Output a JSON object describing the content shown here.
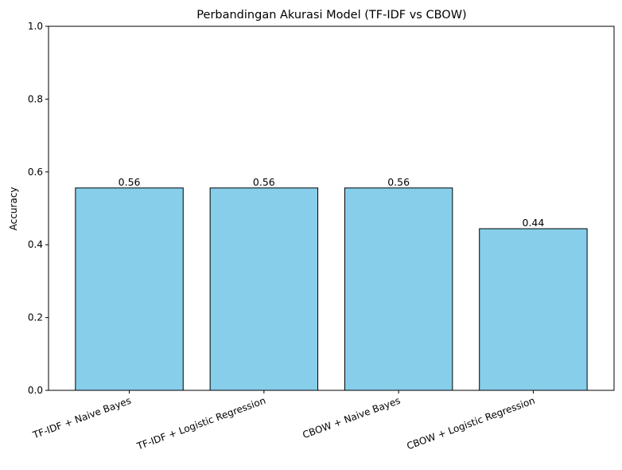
{
  "chart_data": {
    "type": "bar",
    "title": "Perbandingan Akurasi Model (TF-IDF vs CBOW)",
    "xlabel": "",
    "ylabel": "Accuracy",
    "ylim": [
      0,
      1
    ],
    "yticks": [
      0.0,
      0.2,
      0.4,
      0.6,
      0.8,
      1.0
    ],
    "ytick_labels": [
      "0.0",
      "0.2",
      "0.4",
      "0.6",
      "0.8",
      "1.0"
    ],
    "categories": [
      "TF-IDF + Naive Bayes",
      "TF-IDF + Logistic Regression",
      "CBOW + Naive Bayes",
      "CBOW + Logistic Regression"
    ],
    "values": [
      0.556,
      0.556,
      0.556,
      0.444
    ],
    "value_labels": [
      "0.56",
      "0.56",
      "0.56",
      "0.44"
    ],
    "bar_color": "#87ceeb",
    "edge_color": "#000000",
    "grid": false,
    "legend": "none"
  }
}
